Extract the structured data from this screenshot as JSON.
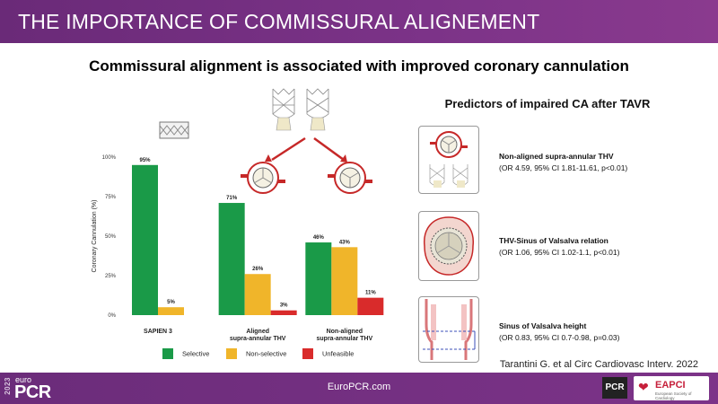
{
  "header": {
    "title": "THE IMPORTANCE OF COMMISSURAL ALIGNEMENT"
  },
  "subtitle": "Commissural alignment is associated with improved coronary cannulation",
  "chart_data": {
    "type": "bar",
    "categories": [
      "SAPIEN 3",
      "Aligned\nsupra-annular THV",
      "Non-aligned\nsupra-annular THV"
    ],
    "series": [
      {
        "name": "Selective",
        "color": "#1a9a48",
        "values": [
          95,
          71,
          46
        ]
      },
      {
        "name": "Non-selective",
        "color": "#f0b52a",
        "values": [
          5,
          26,
          43
        ]
      },
      {
        "name": "Unfeasible",
        "color": "#d92b2b",
        "values": [
          null,
          3,
          11
        ]
      }
    ],
    "data_labels": [
      [
        "95%",
        "5%",
        ""
      ],
      [
        "71%",
        "26%",
        "3%"
      ],
      [
        "46%",
        "43%",
        "11%"
      ]
    ],
    "yticks": [
      "0%",
      "25%",
      "50%",
      "75%",
      "100%"
    ],
    "ylabel": "Coronary Cannulation (%)",
    "ylim": [
      0,
      100
    ],
    "legend": "bottom",
    "grid": false
  },
  "right_panel": {
    "title": "Predictors of impaired CA after TAVR",
    "predictors": [
      {
        "label": "Non-aligned supra-annular THV",
        "stats": "(OR 4.59, 95% CI 1.81-11.61, p<0.01)"
      },
      {
        "label": "THV-Sinus of Valsalva relation",
        "stats": "(OR 1.06, 95% CI 1.02-1.1, p<0.01)"
      },
      {
        "label": "Sinus of Valsalva height",
        "stats": "(OR 0.83, 95% CI 0.7-0.98, p=0.03)"
      }
    ]
  },
  "citation": "Tarantini G. et al Circ Cardiovasc Interv. 2022",
  "footer": {
    "url": "EuroPCR.com",
    "logo_year": "2023",
    "logo_euro": "euro",
    "logo_pcr": "PCR",
    "badge": "PCR",
    "eapci": "EAPCI",
    "eapci_sub": "European Society of Cardiology"
  },
  "colors": {
    "header": "#7c3388",
    "selective": "#1a9a48",
    "non_selective": "#f0b52a",
    "unfeasible": "#d92b2b"
  }
}
